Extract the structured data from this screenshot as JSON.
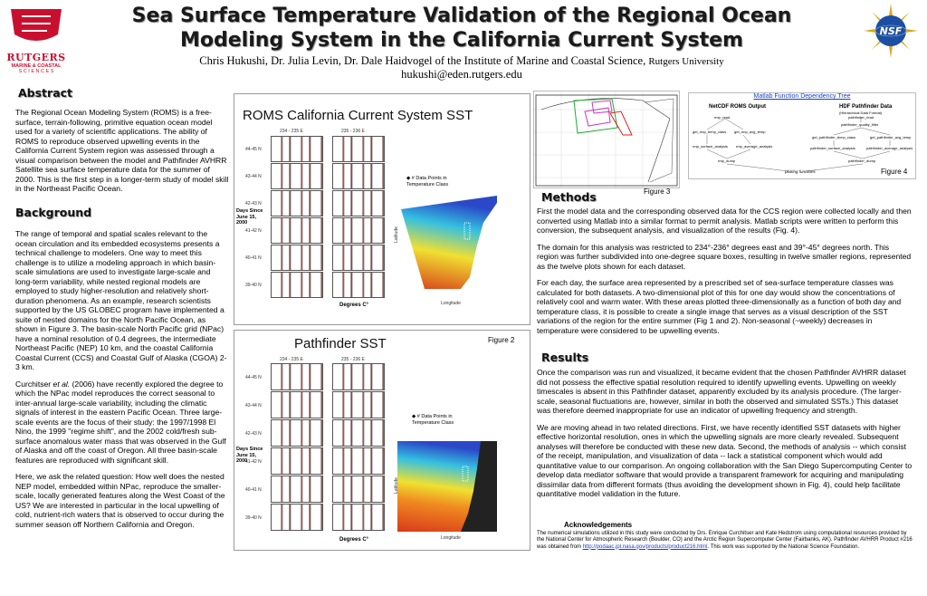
{
  "header": {
    "title_line1": "Sea Surface Temperature Validation of the Regional Ocean",
    "title_line2": "Modeling System in the California Current System",
    "authors": "Chris Hukushi, Dr. Julia Levin, Dr. Dale Haidvogel of the Institute of Marine and Coastal Science,",
    "university": "Rutgers University",
    "email": "hukushi@eden.rutgers.edu"
  },
  "logos": {
    "rutgers_name": "RUTGERS",
    "rutgers_sub1": "MARINE & COASTAL",
    "rutgers_sub2": "S C I E N C E S",
    "nsf": "NSF"
  },
  "abstract": {
    "heading": "Abstract",
    "text": "The Regional Ocean Modeling System (ROMS) is a free-surface, terrain-following, primitive equation ocean model used for a variety of scientific applications.  The ability of ROMS to reproduce observed upwelling events in the California Current System region was assessed through a visual  comparison between the model and Pathfinder AVHRR Satellite sea surface temperature data for the summer of 2000.  This is the first step in a longer-term study of model skill in the Northeast Pacific Ocean."
  },
  "background": {
    "heading": "Background",
    "p1": "The range of temporal and spatial scales relevant to the ocean circulation and its embedded ecosystems presents a technical challenge to modelers.  One way to meet this challenge is to utilize a modeling approach in which basin-scale simulations are used to investigate large-scale and long-term variability, while nested regional models are employed to study higher-resolution and relatively short-duration phenomena.  As an example, research scientists supported by the US GLOBEC program have implemented a suite of nested domains for the North Pacific Ocean, as shown in Figure 3.  The basin-scale North Pacific grid (NPac) have a nominal resolution of 0.4 degrees, the intermediate Northeast Pacific (NEP) 10 km, and the coastal California Coastal Current (CCS) and Coastal Gulf of Alaska (CGOA) 2-3 km.",
    "p2_author": "Curchitser ",
    "p2_etal": "et al.",
    "p2_rest": " (2006) have recently explored the degree to which the NPac model reproduces the correct seasonal to inter-annual large-scale variability, including the climatic signals of interest in the eastern Pacific Ocean.  Three large-scale events are the focus of their study: the 1997/1998 El Nino, the 1999 \"regime shift\", and the 2002 cold/fresh sub-surface anomalous water mass that was observed in the Gulf of Alaska and off the coast of Oregon.  All three basin-scale features are reproduced with significant skill.",
    "p3": "Here, we ask the related question: How well does the nested NEP model, embedded within NPac, reproduce the smaller-scale, locally generated features along the West Coast of the US?  We are interested in particular in the local upwelling of cold, nutrient-rich waters that is observed to occur during the summer season off Northern California and Oregon."
  },
  "figure1": {
    "title": "ROMS California Current System SST",
    "col1_header": "234 - 235 E",
    "col2_header": "235 - 236 E",
    "row_labels": [
      "44-45 N",
      "43-44 N",
      "42-43 N",
      "41-42 N",
      "40-41 N",
      "39-40 N"
    ],
    "yaxis_label": "Days Since June 15, 2000",
    "xaxis_label": "Degrees C°",
    "legend": "# Data Points in Temperature Class",
    "map_ylabel": "Latitude",
    "map_xlabel": "Longitude"
  },
  "figure2": {
    "title": "Pathfinder SST",
    "label": "Figure 2",
    "col1_header": "234 - 235 E",
    "col2_header": "235 - 236 E",
    "row_labels": [
      "44-45 N",
      "43-44 N",
      "42-43 N",
      "41-42 N",
      "40-41 N",
      "39-40 N"
    ],
    "yaxis_label": "Days Since June 15, 2000",
    "xaxis_label": "Degrees C°",
    "legend": "# Data Points in Temperature Class",
    "map_ylabel": "Latitude",
    "map_xlabel": "Longitude"
  },
  "figure3": {
    "label": "Figure 3"
  },
  "figure4": {
    "label": "Figure 4",
    "title": "Matlab Function Dependency Tree",
    "left_header": "NetCDF ROMS Output",
    "right_header": "HDF Pathfinder Data",
    "right_sub": "(Hierarchical Data Format)",
    "nodes_left": [
      "rmp_read",
      "get_rmp_temp_class",
      "get_rmp_avg_temp",
      "rmp_surface_analysis",
      "rmp_average_analysis",
      "rmp_dump"
    ],
    "nodes_right": [
      "pathfinder_read",
      "pathfinder_quality_filter",
      "get_pathfinder_temp_class",
      "get_pathfinder_avg_temp",
      "pathfinder_surface_analysis",
      "pathfinder_average_analysis",
      "pathfinder_dump"
    ],
    "bottom": "plotting functions"
  },
  "methods": {
    "heading": "Methods",
    "p1": "First the model data and the corresponding observed data for the CCS region were collected locally and then converted using Matlab into a similar format to permit analysis.  Matlab scripts were written to perform this conversion, the subsequent analysis, and visualization of the results (Fig. 4).",
    "p2": "The domain for this analysis was restricted to 234°-236° degrees east and 39°-45° degrees north.  This region was further subdivided into one-degree square boxes, resulting in twelve smaller regions, represented as the twelve plots shown for each dataset.",
    "p3": "For each day, the surface area represented by a prescribed set of sea-surface temperature classes was calculated for both datasets.  A two-dimensional plot of this for one day would show the concentrations of relatively cool and warm water.  With these areas plotted three-dimensionally as a function of both day and temperature class, it is possible to create a single image that serves as a visual description of the SST variations of the region for the entire summer (Fig 1 and 2).  Non-seasonal (~weekly) decreases in temperature were considered to be upwelling events."
  },
  "results": {
    "heading": "Results",
    "p1": "Once the comparison was run and visualized, it became evident that the chosen Pathfinder AVHRR dataset did not possess the effective spatial resolution required to identify upwelling events. Upwelling on weekly timescales is absent in this Pathfinder dataset, apparently excluded by its analysis procedure. (The larger-scale, seasonal fluctuations are, however, similar in both the observed and simulated SSTs.)  This dataset was therefore deemed inappropriate for use an indicator of upwelling frequency and strength.",
    "p2": "We are moving ahead in two related directions.  First, we have recently identified SST datasets with higher effective horizontal resolution, ones in which the upwelling signals are more clearly revealed. Subsequent analyses will therefore be conducted with these new data.  Second, the methods of analysis -- which consist of the receipt, manipulation, and visualization of data -- lack a statistical component which would add quantitative value to our comparison. An ongoing collaboration with the San Diego Supercomputing Center to develop data mediator software that would provide a transparent framework for acquiring and manipulating dissimilar data from different formats (thus avoiding the development shown in Fig. 4), could help facilitate quantitative model validation in the future."
  },
  "acknowledgements": {
    "heading": "Acknowledgements",
    "text_pre": "The numerical simulations utilized in this study were conducted by Drs. Enrique Curchitser and Kate Hedstrom using computational resources provided by the National Center for Atmospheric Research (Boulder, CO) and the Arctic Region Supercomputer Center (Fairbanks, AK). Pathfinder AVHRR Product #216 was obtained from ",
    "link": "http://podaac.jpl.nasa.gov/products/product216.html",
    "text_post": ". This work was supported by the National Science Foundation."
  },
  "colors": {
    "title_shadow": "#9a9a9a",
    "map_warm": "#d83a1a",
    "map_cool": "#2a48c8",
    "nsf_blue": "#1c4fa3",
    "rutgers_red": "#c8102e"
  }
}
